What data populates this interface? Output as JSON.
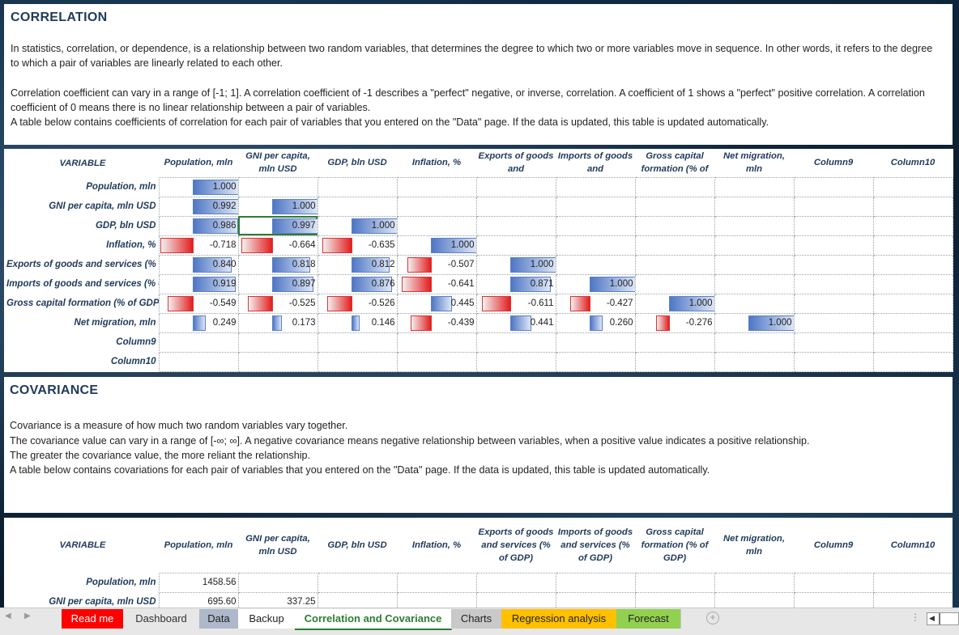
{
  "correlation": {
    "title": "CORRELATION",
    "para1": "In statistics, correlation, or dependence, is a relationship between two random variables, that determines the degree to which two or more variables move in sequence.  In other words, it refers to the degree to which a pair of variables are linearly related to each other.",
    "para2": "Correlation coefficient can vary in a range of [-1; 1]. A correlation coefficient of -1 describes a \"perfect\" negative, or inverse, correlation. A coefficient of 1 shows a \"perfect\" positive correlation. A correlation coefficient of 0 means there is no linear relationship between a pair of variables.",
    "para3": "A table below contains coefficients of correlation for each pair of variables that you entered on the \"Data\" page. If the data is  updated, this table  is updated automatically.",
    "header": [
      "VARIABLE",
      "Population, mln",
      "GNI per capita, mln USD",
      "GDP, bln USD",
      "Inflation, %",
      "Exports of goods and",
      "Imports of goods and",
      "Gross capital formation (% of",
      "Net migration, mln",
      "Column9",
      "Column10"
    ],
    "rows": [
      {
        "label": "Population, mln",
        "values": [
          "1.000",
          "",
          "",
          "",
          "",
          "",
          "",
          "",
          "",
          ""
        ],
        "nums": [
          1,
          null,
          null,
          null,
          null,
          null,
          null,
          null,
          null,
          null
        ]
      },
      {
        "label": "GNI per capita, mln USD",
        "values": [
          "0.992",
          "1.000",
          "",
          "",
          "",
          "",
          "",
          "",
          "",
          ""
        ],
        "nums": [
          0.992,
          1,
          null,
          null,
          null,
          null,
          null,
          null,
          null,
          null
        ]
      },
      {
        "label": "GDP, bln USD",
        "values": [
          "0.986",
          "0.997",
          "1.000",
          "",
          "",
          "",
          "",
          "",
          "",
          ""
        ],
        "nums": [
          0.986,
          0.997,
          1,
          null,
          null,
          null,
          null,
          null,
          null,
          null
        ]
      },
      {
        "label": "Inflation, %",
        "values": [
          "-0.718",
          "-0.664",
          "-0.635",
          "1.000",
          "",
          "",
          "",
          "",
          "",
          ""
        ],
        "nums": [
          -0.718,
          -0.664,
          -0.635,
          1,
          null,
          null,
          null,
          null,
          null,
          null
        ]
      },
      {
        "label": "Exports of goods and services (% of GDP)",
        "values": [
          "0.840",
          "0.818",
          "0.812",
          "-0.507",
          "1.000",
          "",
          "",
          "",
          "",
          ""
        ],
        "nums": [
          0.84,
          0.818,
          0.812,
          -0.507,
          1,
          null,
          null,
          null,
          null,
          null
        ]
      },
      {
        "label": "Imports of goods and services (% of GDP)",
        "values": [
          "0.919",
          "0.897",
          "0.876",
          "-0.641",
          "0.871",
          "1.000",
          "",
          "",
          "",
          ""
        ],
        "nums": [
          0.919,
          0.897,
          0.876,
          -0.641,
          0.871,
          1,
          null,
          null,
          null,
          null
        ]
      },
      {
        "label": "Gross capital formation (% of GDP)",
        "values": [
          "-0.549",
          "-0.525",
          "-0.526",
          "0.445",
          "-0.611",
          "-0.427",
          "1.000",
          "",
          "",
          ""
        ],
        "nums": [
          -0.549,
          -0.525,
          -0.526,
          0.445,
          -0.611,
          -0.427,
          1,
          null,
          null,
          null
        ]
      },
      {
        "label": "Net migration, mln",
        "values": [
          "0.249",
          "0.173",
          "0.146",
          "-0.439",
          "0.441",
          "0.260",
          "-0.276",
          "1.000",
          "",
          ""
        ],
        "nums": [
          0.249,
          0.173,
          0.146,
          -0.439,
          0.441,
          0.26,
          -0.276,
          1,
          null,
          null
        ]
      },
      {
        "label": "Column9",
        "values": [
          "",
          "",
          "",
          "",
          "",
          "",
          "",
          "",
          "",
          ""
        ],
        "nums": [
          null,
          null,
          null,
          null,
          null,
          null,
          null,
          null,
          null,
          null
        ]
      },
      {
        "label": "Column10",
        "values": [
          "",
          "",
          "",
          "",
          "",
          "",
          "",
          "",
          "",
          ""
        ],
        "nums": [
          null,
          null,
          null,
          null,
          null,
          null,
          null,
          null,
          null,
          null
        ]
      }
    ]
  },
  "covariance": {
    "title": "COVARIANCE",
    "para1": "Covariance is a measure of how much two random variables vary together.",
    "para2": "The covariance value can vary in a range of [-∞; ∞].  A negative covariance means negative relationship between variables, when a positive value indicates a positive relationship.",
    "para3": "The greater the covariance value, the more reliant the relationship.",
    "para4": "A table below contains covariations for each pair of variables that you entered on the \"Data\" page. If the data is  updated, this table  is updated automatically.",
    "header": [
      "VARIABLE",
      "Population, mln",
      "GNI per capita, mln USD",
      "GDP, bln USD",
      "Inflation, %",
      "Exports of goods and services (% of GDP)",
      "Imports of goods and services (% of GDP)",
      "Gross capital formation (% of GDP)",
      "Net migration, mln",
      "Column9",
      "Column10"
    ],
    "rows": [
      {
        "label": "Population, mln",
        "values": [
          "1458.56",
          "",
          "",
          "",
          "",
          "",
          "",
          "",
          "",
          ""
        ]
      },
      {
        "label": "GNI per capita, mln USD",
        "values": [
          "695.60",
          "337.25",
          "",
          "",
          "",
          "",
          "",
          "",
          "",
          ""
        ]
      }
    ]
  },
  "tabs": [
    {
      "label": "Read me",
      "bg": "#ff0000",
      "color": "#ffffff"
    },
    {
      "label": "Dashboard",
      "bg": "#e7e7e7",
      "color": "#333333"
    },
    {
      "label": "Data",
      "bg": "#adb9ca",
      "color": "#222222"
    },
    {
      "label": "Backup",
      "bg": "#ffffff",
      "color": "#222222"
    },
    {
      "label": "Correlation and Covariance",
      "bg": "#ffffff",
      "color": "#2e7d32",
      "active": true
    },
    {
      "label": "Charts",
      "bg": "#c9c9c9",
      "color": "#222222"
    },
    {
      "label": "Regression analysis",
      "bg": "#ffc000",
      "color": "#222222"
    },
    {
      "label": "Forecast",
      "bg": "#92d050",
      "color": "#222222"
    }
  ],
  "colors": {
    "positive_bar": "#4f77c5",
    "negative_bar": "#e41d1d",
    "active_tab_text": "#2e7d32"
  }
}
